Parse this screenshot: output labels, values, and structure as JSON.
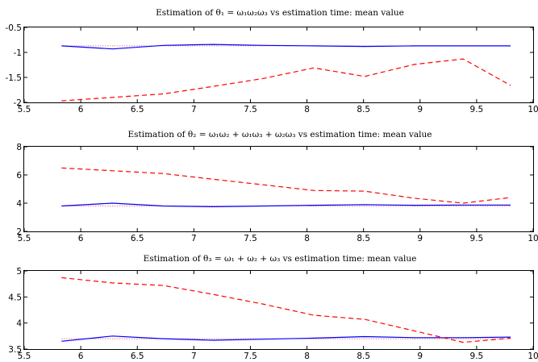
{
  "chart_data": [
    {
      "type": "line",
      "title": "Estimation of θ₁ = ω₁ω₂ω₃ vs estimation time: mean value",
      "xlim": [
        5.5,
        10
      ],
      "ylim": [
        -2,
        -0.5
      ],
      "xticks": [
        5.5,
        6,
        6.5,
        7,
        7.5,
        8,
        8.5,
        9,
        9.5,
        10
      ],
      "xtick_labels": [
        "5.5",
        "6",
        "6.5",
        "7",
        "7.5",
        "8",
        "8.5",
        "9",
        "9.5",
        "10"
      ],
      "yticks": [
        -2,
        -1.5,
        -1,
        -0.5
      ],
      "ytick_labels": [
        "-2",
        "-1.5",
        "-1",
        "-0.5"
      ],
      "grid": false,
      "series": [
        {
          "style": "dotted",
          "color": "#ff0000",
          "x": [
            5.83,
            6.28,
            6.73,
            7.17,
            7.62,
            8.06,
            8.51,
            8.95,
            9.38,
            9.8
          ],
          "y": [
            -0.87,
            -0.87,
            -0.87,
            -0.87,
            -0.87,
            -0.87,
            -0.87,
            -0.87,
            -0.87,
            -0.87
          ]
        },
        {
          "style": "solid",
          "color": "#0000ff",
          "x": [
            5.83,
            6.28,
            6.73,
            7.17,
            7.62,
            8.06,
            8.51,
            8.95,
            9.38,
            9.8
          ],
          "y": [
            -0.87,
            -0.93,
            -0.86,
            -0.84,
            -0.86,
            -0.87,
            -0.88,
            -0.87,
            -0.87,
            -0.87
          ]
        },
        {
          "style": "dashed",
          "color": "#ff0000",
          "x": [
            5.83,
            6.28,
            6.73,
            7.17,
            7.62,
            8.06,
            8.51,
            8.95,
            9.38,
            9.8
          ],
          "y": [
            -1.97,
            -1.9,
            -1.83,
            -1.68,
            -1.52,
            -1.31,
            -1.48,
            -1.24,
            -1.13,
            -1.66
          ]
        }
      ]
    },
    {
      "type": "line",
      "title": "Estimation of θ₂ = ω₁ω₂ + ω₁ω₃ + ω₂ω₃ vs estimation time: mean value",
      "xlim": [
        5.5,
        10
      ],
      "ylim": [
        2,
        8
      ],
      "xticks": [
        5.5,
        6,
        6.5,
        7,
        7.5,
        8,
        8.5,
        9,
        9.5,
        10
      ],
      "xtick_labels": [
        "5.5",
        "6",
        "6.5",
        "7",
        "7.5",
        "8",
        "8.5",
        "9",
        "9.5",
        "10"
      ],
      "yticks": [
        2,
        4,
        6,
        8
      ],
      "ytick_labels": [
        "2",
        "4",
        "6",
        "8"
      ],
      "grid": false,
      "series": [
        {
          "style": "dotted",
          "color": "#ff0000",
          "x": [
            5.83,
            6.28,
            6.73,
            7.17,
            7.62,
            8.06,
            8.51,
            8.95,
            9.38,
            9.8
          ],
          "y": [
            3.8,
            3.8,
            3.8,
            3.8,
            3.8,
            3.8,
            3.8,
            3.8,
            3.8,
            3.8
          ]
        },
        {
          "style": "solid",
          "color": "#0000ff",
          "x": [
            5.83,
            6.28,
            6.73,
            7.17,
            7.62,
            8.06,
            8.51,
            8.95,
            9.38,
            9.8
          ],
          "y": [
            3.8,
            4.0,
            3.8,
            3.75,
            3.8,
            3.85,
            3.9,
            3.85,
            3.87,
            3.87
          ]
        },
        {
          "style": "dashed",
          "color": "#ff0000",
          "x": [
            5.83,
            6.28,
            6.73,
            7.17,
            7.62,
            8.06,
            8.51,
            8.95,
            9.38,
            9.8
          ],
          "y": [
            6.5,
            6.3,
            6.1,
            5.7,
            5.3,
            4.9,
            4.85,
            4.35,
            4.0,
            4.4
          ]
        }
      ]
    },
    {
      "type": "line",
      "title": "Estimation of θ₃ = ω₁ + ω₂ + ω₃ vs estimation time: mean value",
      "xlim": [
        5.5,
        10
      ],
      "ylim": [
        3.5,
        5
      ],
      "xticks": [
        5.5,
        6,
        6.5,
        7,
        7.5,
        8,
        8.5,
        9,
        9.5,
        10
      ],
      "xtick_labels": [
        "5.5",
        "6",
        "6.5",
        "7",
        "7.5",
        "8",
        "8.5",
        "9",
        "9.5",
        "10"
      ],
      "yticks": [
        3.5,
        4,
        4.5,
        5
      ],
      "ytick_labels": [
        "3.5",
        "4",
        "4.5",
        "5"
      ],
      "grid": false,
      "series": [
        {
          "style": "dotted",
          "color": "#ff0000",
          "x": [
            5.83,
            6.28,
            6.73,
            7.17,
            7.62,
            8.06,
            8.51,
            8.95,
            9.38,
            9.8
          ],
          "y": [
            3.7,
            3.7,
            3.7,
            3.7,
            3.7,
            3.7,
            3.7,
            3.7,
            3.7,
            3.7
          ]
        },
        {
          "style": "solid",
          "color": "#0000ff",
          "x": [
            5.83,
            6.28,
            6.73,
            7.17,
            7.62,
            8.06,
            8.51,
            8.95,
            9.38,
            9.8
          ],
          "y": [
            3.65,
            3.75,
            3.7,
            3.67,
            3.69,
            3.71,
            3.74,
            3.72,
            3.72,
            3.73
          ]
        },
        {
          "style": "dashed",
          "color": "#ff0000",
          "x": [
            5.83,
            6.28,
            6.73,
            7.17,
            7.62,
            8.06,
            8.51,
            8.95,
            9.38,
            9.8
          ],
          "y": [
            4.87,
            4.77,
            4.72,
            4.55,
            4.36,
            4.15,
            4.07,
            3.85,
            3.63,
            3.71
          ]
        }
      ]
    }
  ]
}
